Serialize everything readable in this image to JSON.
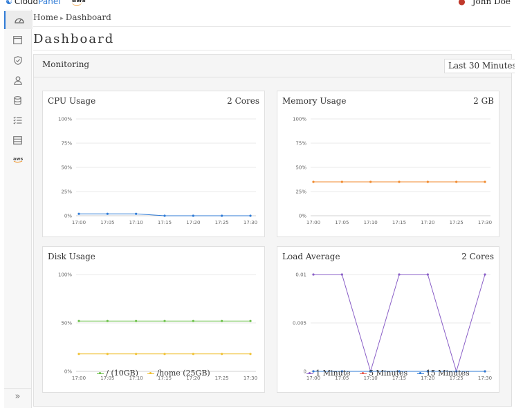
{
  "brand": {
    "name_a": "Cloud",
    "name_b": "Panel",
    "aws": "aws"
  },
  "user": {
    "name": "John Doe"
  },
  "breadcrumb": {
    "home": "Home",
    "current": "Dashboard"
  },
  "page_title": "Dashboard",
  "monitoring": {
    "title": "Monitoring",
    "range": "Last 30 Minutes"
  },
  "colors": {
    "blue": "#2f7bd6",
    "orange": "#f08a2e",
    "green": "#6cc04a",
    "yellow": "#f0c030",
    "purple": "#8a5fc7",
    "red": "#e55a4e"
  },
  "chart_data": [
    {
      "id": "cpu",
      "type": "line",
      "title": "CPU Usage",
      "badge": "2 Cores",
      "x": [
        "17:00",
        "17:05",
        "17:10",
        "17:15",
        "17:20",
        "17:25",
        "17:30"
      ],
      "yticks": [
        "0%",
        "25%",
        "50%",
        "75%",
        "100%"
      ],
      "ylim": [
        0,
        100
      ],
      "series": [
        {
          "values": [
            2,
            2,
            2,
            0,
            0,
            0,
            0
          ],
          "color": "#2f7bd6"
        }
      ]
    },
    {
      "id": "memory",
      "type": "line",
      "title": "Memory Usage",
      "badge": "2 GB",
      "x": [
        "17:00",
        "17:05",
        "17:10",
        "17:15",
        "17:20",
        "17:25",
        "17:30"
      ],
      "yticks": [
        "0%",
        "25%",
        "50%",
        "75%",
        "100%"
      ],
      "ylim": [
        0,
        100
      ],
      "series": [
        {
          "values": [
            35,
            35,
            35,
            35,
            35,
            35,
            35
          ],
          "color": "#f08a2e"
        }
      ]
    },
    {
      "id": "disk",
      "type": "line",
      "title": "Disk Usage",
      "badge": "",
      "x": [
        "17:00",
        "17:05",
        "17:10",
        "17:15",
        "17:20",
        "17:25",
        "17:30"
      ],
      "yticks": [
        "0%",
        "50%",
        "100%"
      ],
      "ylim": [
        0,
        100
      ],
      "series": [
        {
          "name": "/ (10GB)",
          "values": [
            52,
            52,
            52,
            52,
            52,
            52,
            52
          ],
          "color": "#6cc04a"
        },
        {
          "name": "/home (25GB)",
          "values": [
            18,
            18,
            18,
            18,
            18,
            18,
            18
          ],
          "color": "#f0c030"
        }
      ]
    },
    {
      "id": "load",
      "type": "line",
      "title": "Load Average",
      "badge": "2 Cores",
      "x": [
        "17:00",
        "17:05",
        "17:10",
        "17:15",
        "17:20",
        "17:25",
        "17:30"
      ],
      "yticks": [
        "0",
        "0.005",
        "0.01"
      ],
      "ylim": [
        0,
        0.01
      ],
      "series": [
        {
          "name": "1 Minute",
          "values": [
            0.01,
            0.01,
            0,
            0.01,
            0.01,
            0,
            0.01
          ],
          "color": "#8a5fc7"
        },
        {
          "name": "5 Minutes",
          "values": [
            0,
            0,
            0,
            0,
            0,
            0,
            0
          ],
          "color": "#e55a4e"
        },
        {
          "name": "15 Minutes",
          "values": [
            0,
            0,
            0,
            0,
            0,
            0,
            0
          ],
          "color": "#2f7bd6"
        }
      ]
    }
  ]
}
